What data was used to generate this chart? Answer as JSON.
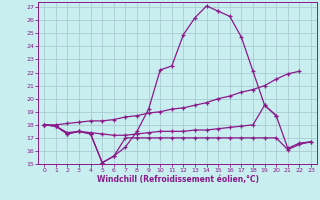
{
  "xlabel": "Windchill (Refroidissement éolien,°C)",
  "xlim": [
    -0.5,
    23.5
  ],
  "ylim": [
    15,
    27.4
  ],
  "yticks": [
    15,
    16,
    17,
    18,
    19,
    20,
    21,
    22,
    23,
    24,
    25,
    26,
    27
  ],
  "xticks": [
    0,
    1,
    2,
    3,
    4,
    5,
    6,
    7,
    8,
    9,
    10,
    11,
    12,
    13,
    14,
    15,
    16,
    17,
    18,
    19,
    20,
    21,
    22,
    23
  ],
  "bg_color": "#c8eef0",
  "grid_color": "#a8ccd0",
  "line_color": "#8b1a8a",
  "line1_y": [
    18.0,
    17.9,
    17.3,
    17.5,
    17.3,
    15.1,
    15.6,
    17.0,
    17.0,
    17.0,
    17.0,
    17.0,
    17.0,
    17.0,
    17.0,
    17.0,
    17.0,
    17.0,
    17.0,
    17.0,
    17.0,
    16.1,
    16.5,
    16.7
  ],
  "line2_y": [
    18.0,
    17.9,
    17.3,
    17.5,
    17.3,
    15.1,
    15.6,
    16.3,
    17.5,
    19.2,
    22.2,
    22.5,
    24.9,
    26.2,
    27.1,
    26.7,
    26.3,
    24.7,
    22.1,
    19.5,
    18.7,
    null,
    null,
    null
  ],
  "line3_y": [
    18.0,
    18.0,
    18.1,
    18.2,
    18.3,
    18.3,
    18.4,
    18.6,
    18.7,
    18.9,
    19.0,
    19.2,
    19.3,
    19.5,
    19.7,
    20.0,
    20.2,
    20.5,
    20.7,
    21.0,
    21.5,
    21.9,
    22.1,
    null
  ],
  "line4_y": [
    18.0,
    17.9,
    17.4,
    17.5,
    17.4,
    17.3,
    17.2,
    17.2,
    17.3,
    17.4,
    17.5,
    17.5,
    17.5,
    17.6,
    17.6,
    17.7,
    17.8,
    17.9,
    18.0,
    19.5,
    18.7,
    16.2,
    16.6,
    16.7
  ]
}
